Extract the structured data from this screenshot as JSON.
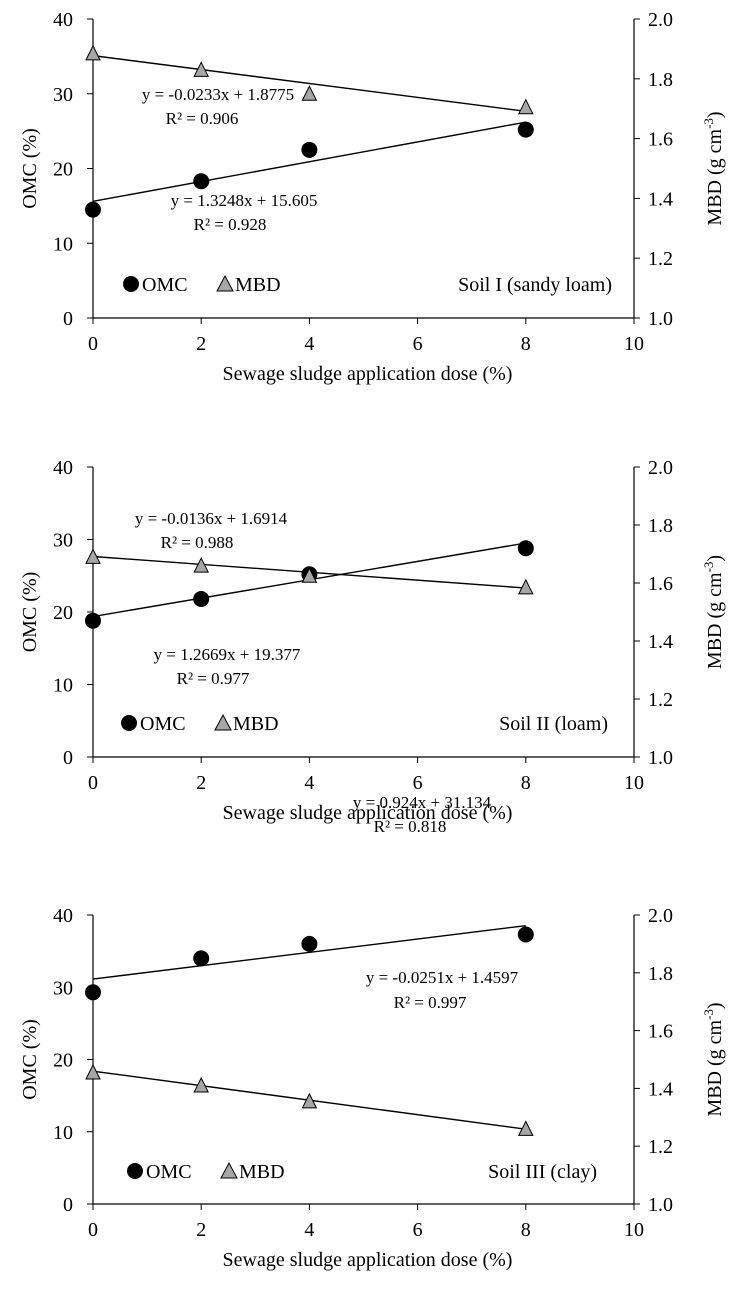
{
  "chart_data": [
    {
      "type": "scatter",
      "soil_label": "Soil I (sandy loam)",
      "xlabel": "Sewage sludge application dose (%)",
      "ylabel_left": "OMC (%)",
      "ylabel_right": {
        "main": "MBD (g cm",
        "sup": "-3",
        "close": ")"
      },
      "xlim": [
        0,
        10
      ],
      "xticks": [
        0,
        2,
        4,
        6,
        8,
        10
      ],
      "ylim_left": [
        0,
        40
      ],
      "yticks_left": [
        0,
        10,
        20,
        30,
        40
      ],
      "ylim_right": [
        1.0,
        2.0
      ],
      "yticks_right": [
        "1.0",
        "1.2",
        "1.4",
        "1.6",
        "1.8",
        "2.0"
      ],
      "legend": [
        "OMC",
        "MBD"
      ],
      "series": [
        {
          "name": "OMC",
          "axis": "left",
          "marker": "circle",
          "color": "#000000",
          "x": [
            0,
            2,
            4,
            8
          ],
          "y": [
            14.5,
            18.3,
            22.5,
            25.2
          ],
          "trend": {
            "slope": 1.3248,
            "intercept": 15.605
          },
          "equation": "y = 1.3248x + 15.605",
          "r2": "R² = 0.928"
        },
        {
          "name": "MBD",
          "axis": "right",
          "marker": "triangle",
          "color": "#a6a6a6",
          "x": [
            0,
            2,
            4,
            8
          ],
          "y": [
            1.885,
            1.83,
            1.75,
            1.705
          ],
          "trend": {
            "slope": -0.0233,
            "intercept": 1.8775
          },
          "equation": "y = -0.0233x + 1.8775",
          "r2": "R² = 0.906"
        }
      ]
    },
    {
      "type": "scatter",
      "soil_label": "Soil II (loam)",
      "xlabel": "Sewage sludge application dose (%)",
      "ylabel_left": "OMC (%)",
      "ylabel_right": {
        "main": "MBD (g cm",
        "sup": "-3",
        "close": ")"
      },
      "xlim": [
        0,
        10
      ],
      "xticks": [
        0,
        2,
        4,
        6,
        8,
        10
      ],
      "ylim_left": [
        0,
        40
      ],
      "yticks_left": [
        0,
        10,
        20,
        30,
        40
      ],
      "ylim_right": [
        1.0,
        2.0
      ],
      "yticks_right": [
        "1.0",
        "1.2",
        "1.4",
        "1.6",
        "1.8",
        "2.0"
      ],
      "legend": [
        "OMC",
        "MBD"
      ],
      "series": [
        {
          "name": "OMC",
          "axis": "left",
          "marker": "circle",
          "color": "#000000",
          "x": [
            0,
            2,
            4,
            8
          ],
          "y": [
            18.8,
            21.8,
            25.2,
            28.8
          ],
          "trend": {
            "slope": 1.2669,
            "intercept": 19.377
          },
          "equation": "y = 1.2669x + 19.377",
          "r2": "R² = 0.977"
        },
        {
          "name": "MBD",
          "axis": "right",
          "marker": "triangle",
          "color": "#a6a6a6",
          "x": [
            0,
            2,
            4,
            8
          ],
          "y": [
            1.69,
            1.66,
            1.625,
            1.585
          ],
          "trend": {
            "slope": -0.0136,
            "intercept": 1.6914
          },
          "equation": "y = -0.0136x + 1.6914",
          "r2": "R² = 0.988"
        }
      ]
    },
    {
      "type": "scatter",
      "soil_label": "Soil III (clay)",
      "xlabel": "Sewage sludge application dose (%)",
      "ylabel_left": "OMC (%)",
      "ylabel_right": {
        "main": "MBD (g cm",
        "sup": "-3",
        "close": ")"
      },
      "xlim": [
        0,
        10
      ],
      "xticks": [
        0,
        2,
        4,
        6,
        8,
        10
      ],
      "ylim_left": [
        0,
        40
      ],
      "yticks_left": [
        0,
        10,
        20,
        30,
        40
      ],
      "ylim_right": [
        1.0,
        2.0
      ],
      "yticks_right": [
        "1.0",
        "1.2",
        "1.4",
        "1.6",
        "1.8",
        "2.0"
      ],
      "legend": [
        "OMC",
        "MBD"
      ],
      "series": [
        {
          "name": "OMC",
          "axis": "left",
          "marker": "circle",
          "color": "#000000",
          "x": [
            0,
            2,
            4,
            8
          ],
          "y": [
            29.3,
            34.0,
            36.0,
            37.3
          ],
          "trend": {
            "slope": 0.924,
            "intercept": 31.134
          },
          "equation": "y = 0.924x + 31.134",
          "r2": "R² = 0.818"
        },
        {
          "name": "MBD",
          "axis": "right",
          "marker": "triangle",
          "color": "#a6a6a6",
          "x": [
            0,
            2,
            4,
            8
          ],
          "y": [
            1.455,
            1.41,
            1.355,
            1.26
          ],
          "trend": {
            "slope": -0.0251,
            "intercept": 1.4597
          },
          "equation": "y = -0.0251x + 1.4597",
          "r2": "R² = 0.997"
        }
      ]
    }
  ]
}
